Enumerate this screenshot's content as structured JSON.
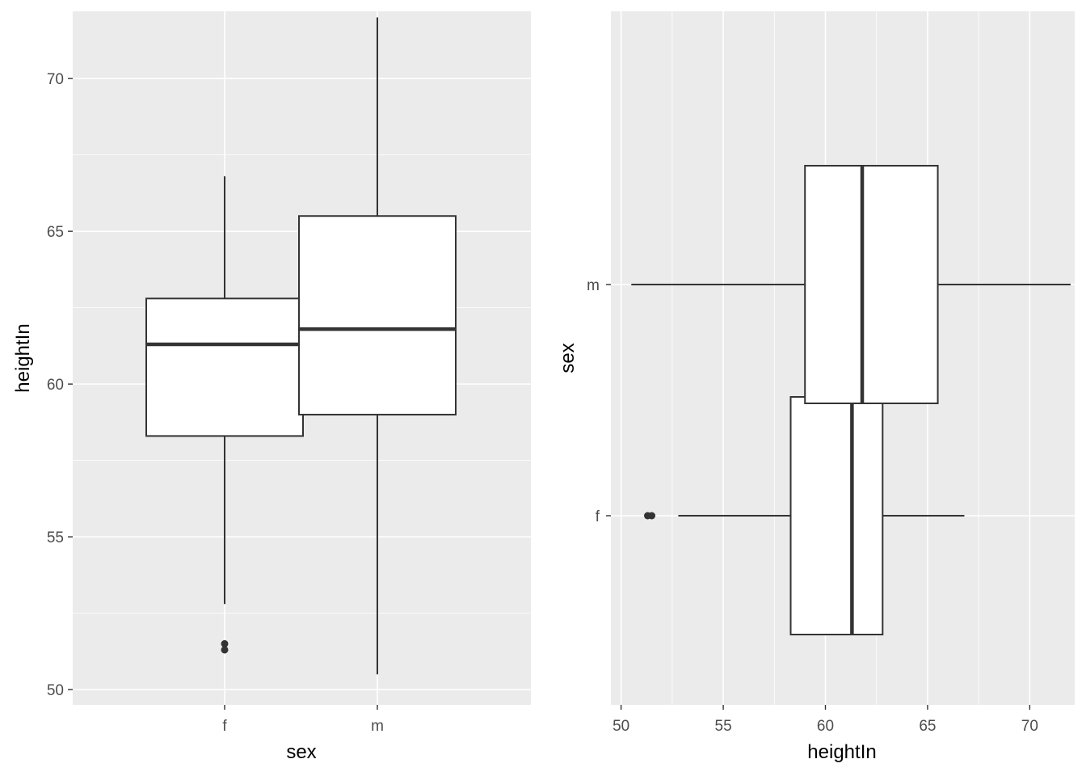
{
  "chart_data": [
    {
      "type": "boxplot",
      "orientation": "vertical",
      "xlabel": "sex",
      "ylabel": "heightIn",
      "categories": [
        "f",
        "m"
      ],
      "ylim": [
        49.5,
        72.2
      ],
      "y_ticks": [
        50,
        55,
        60,
        65,
        70
      ],
      "y_tick_labels": [
        "50",
        "55",
        "60",
        "65",
        "70"
      ],
      "grid": true,
      "boxes": [
        {
          "category": "f",
          "whisker_low": 52.8,
          "q1": 58.3,
          "median": 61.3,
          "q3": 62.8,
          "whisker_high": 66.8,
          "outliers": [
            51.5,
            51.3
          ]
        },
        {
          "category": "m",
          "whisker_low": 50.5,
          "q1": 59.0,
          "median": 61.8,
          "q3": 65.5,
          "whisker_high": 72.0,
          "outliers": []
        }
      ]
    },
    {
      "type": "boxplot",
      "orientation": "horizontal",
      "xlabel": "heightIn",
      "ylabel": "sex",
      "categories": [
        "f",
        "m"
      ],
      "xlim": [
        49.5,
        72.2
      ],
      "x_ticks": [
        50,
        55,
        60,
        65,
        70
      ],
      "x_tick_labels": [
        "50",
        "55",
        "60",
        "65",
        "70"
      ],
      "grid": true,
      "boxes": [
        {
          "category": "f",
          "whisker_low": 52.8,
          "q1": 58.3,
          "median": 61.3,
          "q3": 62.8,
          "whisker_high": 66.8,
          "outliers": [
            51.5,
            51.3
          ]
        },
        {
          "category": "m",
          "whisker_low": 50.5,
          "q1": 59.0,
          "median": 61.8,
          "q3": 65.5,
          "whisker_high": 72.0,
          "outliers": []
        }
      ]
    }
  ]
}
